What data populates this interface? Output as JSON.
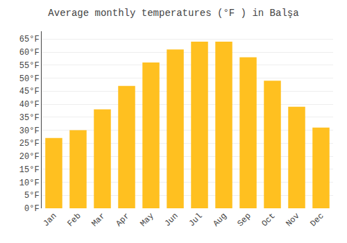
{
  "chart_data": {
    "type": "bar",
    "title": "Average monthly temperatures (°F ) in Balşa",
    "categories": [
      "Jan",
      "Feb",
      "Mar",
      "Apr",
      "May",
      "Jun",
      "Jul",
      "Aug",
      "Sep",
      "Oct",
      "Nov",
      "Dec"
    ],
    "values": [
      27,
      30,
      38,
      47,
      56,
      61,
      64,
      64,
      58,
      49,
      39,
      31
    ],
    "color": "#FFC020",
    "ylim": [
      0,
      68
    ],
    "yticks": [
      {
        "value": 0,
        "label": "0°F"
      },
      {
        "value": 5,
        "label": "5°F"
      },
      {
        "value": 10,
        "label": "10°F"
      },
      {
        "value": 15,
        "label": "15°F"
      },
      {
        "value": 20,
        "label": "20°F"
      },
      {
        "value": 25,
        "label": "25°F"
      },
      {
        "value": 30,
        "label": "30°F"
      },
      {
        "value": 35,
        "label": "35°F"
      },
      {
        "value": 40,
        "label": "40°F"
      },
      {
        "value": 45,
        "label": "45°F"
      },
      {
        "value": 50,
        "label": "50°F"
      },
      {
        "value": 55,
        "label": "55°F"
      },
      {
        "value": 60,
        "label": "60°F"
      },
      {
        "value": 65,
        "label": "65°F"
      }
    ],
    "grid": true
  }
}
